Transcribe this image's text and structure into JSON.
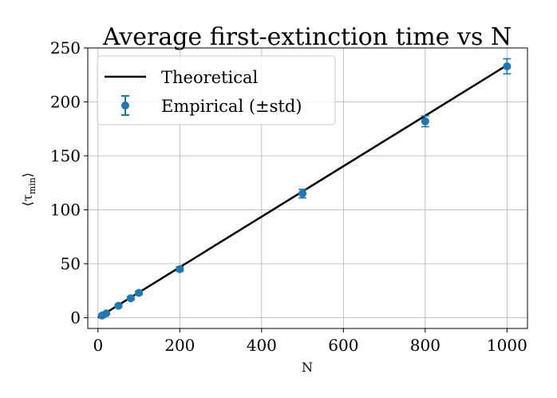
{
  "chart_data": {
    "type": "line+errorbar",
    "title": "Average first-extinction time vs N",
    "xlabel": "N",
    "ylabel_main": "⟨τ",
    "ylabel_sub": "min",
    "ylabel_close": "⟩",
    "xlim": [
      -25,
      1050
    ],
    "ylim": [
      -10,
      250
    ],
    "xticks": [
      0,
      200,
      400,
      600,
      800,
      1000
    ],
    "yticks": [
      0,
      50,
      100,
      150,
      200,
      250
    ],
    "grid": true,
    "legend_position": "upper-left",
    "series": [
      {
        "name": "Theoretical",
        "kind": "line",
        "color": "#000000",
        "x": [
          0,
          1000
        ],
        "y": [
          0,
          234
        ]
      },
      {
        "name": "Empirical (±std)",
        "kind": "errorbar",
        "color": "#1f77b4",
        "x": [
          10,
          20,
          50,
          80,
          100,
          200,
          500,
          800,
          1000
        ],
        "y": [
          2,
          4,
          11,
          18,
          23,
          45,
          115,
          182,
          233
        ],
        "std": [
          0.6,
          0.8,
          1.2,
          1.5,
          1.6,
          2,
          4,
          5,
          7
        ]
      }
    ]
  }
}
